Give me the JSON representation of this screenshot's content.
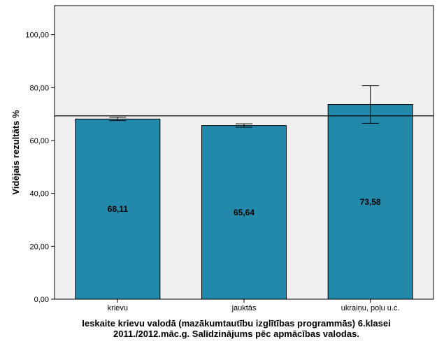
{
  "chart_data": {
    "type": "bar",
    "categories": [
      "krievu",
      "jauktās",
      "ukraiņu, poļu u.c."
    ],
    "values": [
      68.11,
      65.64,
      73.58
    ],
    "value_labels": [
      "68,11",
      "65,64",
      "73,58"
    ],
    "error_bars": [
      {
        "low": 67.5,
        "high": 68.8
      },
      {
        "low": 65.0,
        "high": 66.3
      },
      {
        "low": 66.5,
        "high": 80.7
      }
    ],
    "reference_line": 69.3,
    "ylabel": "Vidējais rezultāts %",
    "xlabel_lines": [
      "Ieskaite krievu valodā (mazākumtautību izglītības programmās) 6.klasei",
      "2011./2012.māc.g. Salīdzinājums pēc apmācības valodas."
    ],
    "ylim": [
      0,
      111
    ],
    "yticks": [
      0,
      20,
      40,
      60,
      80,
      100
    ],
    "ytick_labels": [
      "0,00",
      "20,00",
      "40,00",
      "60,00",
      "80,00",
      "100,00"
    ],
    "grid": false,
    "colors": {
      "bar": "#2389aa",
      "plot_background": "#f0f0f0",
      "axis": "#000000"
    }
  }
}
